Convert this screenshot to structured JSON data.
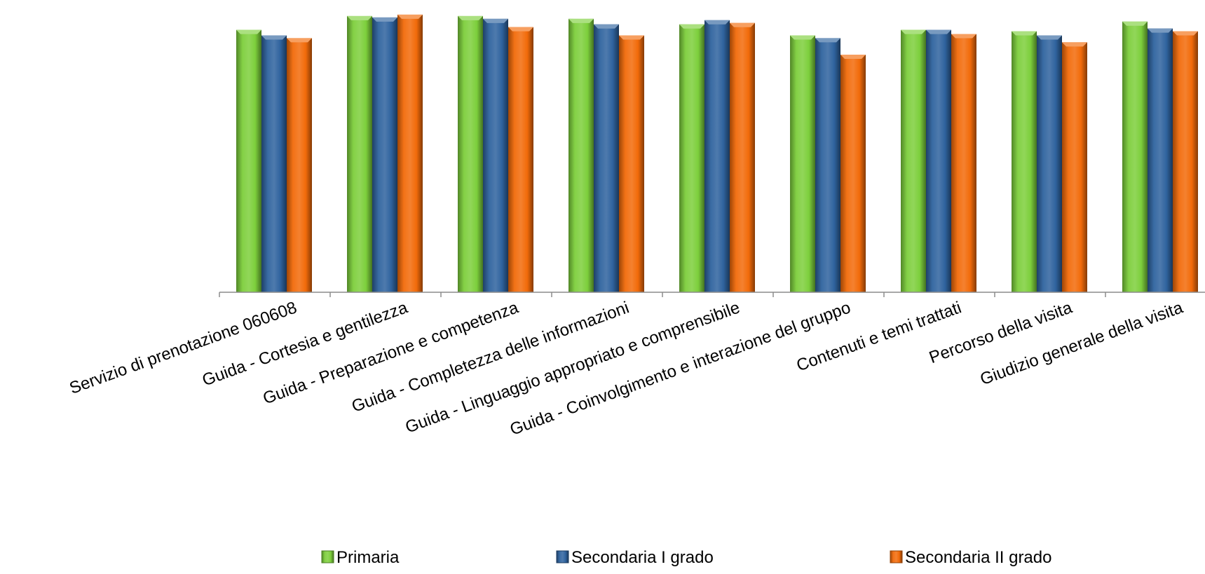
{
  "chart_data": {
    "type": "bar",
    "categories": [
      "Servizio di prenotazione 060608",
      "Guida - Cortesia e gentilezza",
      "Guida - Preparazione e competenza",
      "Guida - Completezza delle informazioni",
      "Guida - Linguaggio appropriato e comprensibile",
      "Guida - Coinvolgimento e interazione del gruppo",
      "Contenuti e temi trattati",
      "Percorso della visita",
      "Giudizio generale della visita"
    ],
    "series": [
      {
        "name": "Primaria",
        "color": "#7dcf3c",
        "values": [
          0.95,
          1.0,
          1.0,
          0.99,
          0.97,
          0.93,
          0.95,
          0.945,
          0.98
        ]
      },
      {
        "name": "Secondaria I grado",
        "color": "#2f639e",
        "values": [
          0.93,
          0.995,
          0.99,
          0.97,
          0.985,
          0.92,
          0.95,
          0.93,
          0.955
        ]
      },
      {
        "name": "Secondaria II grado",
        "color": "#f26b0a",
        "values": [
          0.92,
          1.005,
          0.96,
          0.93,
          0.975,
          0.86,
          0.935,
          0.905,
          0.945
        ]
      }
    ],
    "ylim": [
      0,
      1.02
    ],
    "grid": false,
    "legend_position": "bottom"
  }
}
